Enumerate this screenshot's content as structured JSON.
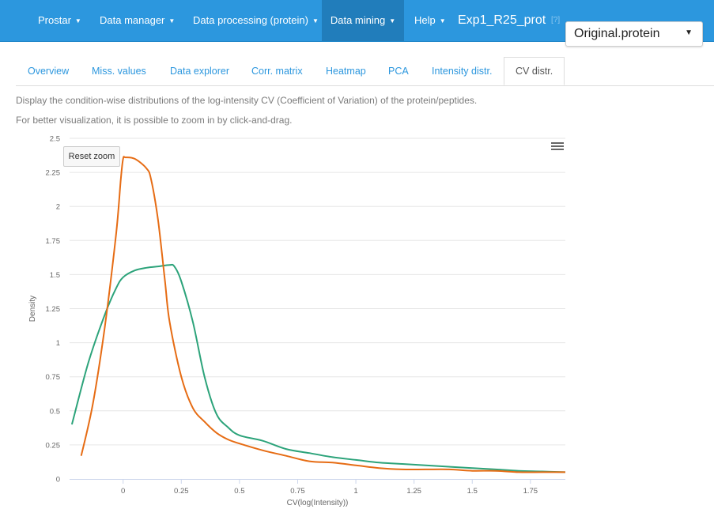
{
  "navbar": {
    "items": [
      {
        "label": "Prostar"
      },
      {
        "label": "Data manager"
      },
      {
        "label": "Data processing (protein)"
      },
      {
        "label": "Data mining"
      },
      {
        "label": "Help"
      }
    ],
    "dataset_title": "Exp1_R25_prot",
    "help_mark": "[?]",
    "select_value": "Original.protein",
    "colors": {
      "bar": "#2c97de",
      "active": "#217dbb"
    }
  },
  "tabs": [
    {
      "label": "Overview"
    },
    {
      "label": "Miss. values"
    },
    {
      "label": "Data explorer"
    },
    {
      "label": "Corr. matrix"
    },
    {
      "label": "Heatmap"
    },
    {
      "label": "PCA"
    },
    {
      "label": "Intensity distr."
    },
    {
      "label": "CV distr."
    }
  ],
  "description": {
    "line1": "Display the condition-wise distributions of the log-intensity CV (Coefficient of Variation) of the protein/peptides.",
    "line2": "For better visualization, it is possible to zoom in by click-and-drag."
  },
  "chart_controls": {
    "reset_zoom": "Reset zoom",
    "menu_icon": "hamburger-icon"
  },
  "chart_data": {
    "type": "line",
    "title": "",
    "xlabel": "CV(log(Intensity))",
    "ylabel": "Density",
    "xlim": [
      -0.23,
      1.9
    ],
    "ylim": [
      0,
      2.5
    ],
    "grid": true,
    "xticks": [
      "0",
      "0.25",
      "0.5",
      "0.75",
      "1",
      "1.25",
      "1.5",
      "1.75"
    ],
    "yticks": [
      "0",
      "0.25",
      "0.5",
      "0.75",
      "1",
      "1.25",
      "1.5",
      "1.75",
      "2",
      "2.25",
      "2.5"
    ],
    "series": [
      {
        "color": "#2ca37a",
        "x": [
          -0.22,
          -0.15,
          -0.08,
          -0.03,
          0.0,
          0.05,
          0.1,
          0.15,
          0.2,
          0.22,
          0.25,
          0.3,
          0.35,
          0.4,
          0.45,
          0.5,
          0.6,
          0.7,
          0.8,
          0.9,
          1.0,
          1.1,
          1.2,
          1.3,
          1.4,
          1.5,
          1.6,
          1.7,
          1.8,
          1.9
        ],
        "y": [
          0.4,
          0.85,
          1.2,
          1.4,
          1.48,
          1.53,
          1.55,
          1.56,
          1.57,
          1.56,
          1.45,
          1.15,
          0.75,
          0.48,
          0.38,
          0.32,
          0.28,
          0.22,
          0.19,
          0.16,
          0.14,
          0.12,
          0.11,
          0.1,
          0.09,
          0.08,
          0.07,
          0.06,
          0.055,
          0.05
        ]
      },
      {
        "color": "#e66c14",
        "x": [
          -0.18,
          -0.13,
          -0.08,
          -0.03,
          -0.01,
          0.0,
          0.01,
          0.05,
          0.1,
          0.12,
          0.15,
          0.18,
          0.2,
          0.25,
          0.3,
          0.35,
          0.4,
          0.45,
          0.5,
          0.6,
          0.7,
          0.8,
          0.9,
          1.0,
          1.1,
          1.2,
          1.3,
          1.4,
          1.5,
          1.6,
          1.7,
          1.8,
          1.9
        ],
        "y": [
          0.17,
          0.55,
          1.1,
          1.8,
          2.2,
          2.35,
          2.36,
          2.35,
          2.28,
          2.2,
          1.9,
          1.45,
          1.15,
          0.75,
          0.52,
          0.42,
          0.34,
          0.29,
          0.26,
          0.21,
          0.17,
          0.13,
          0.12,
          0.1,
          0.08,
          0.07,
          0.07,
          0.07,
          0.06,
          0.06,
          0.05,
          0.05,
          0.05
        ]
      }
    ]
  }
}
